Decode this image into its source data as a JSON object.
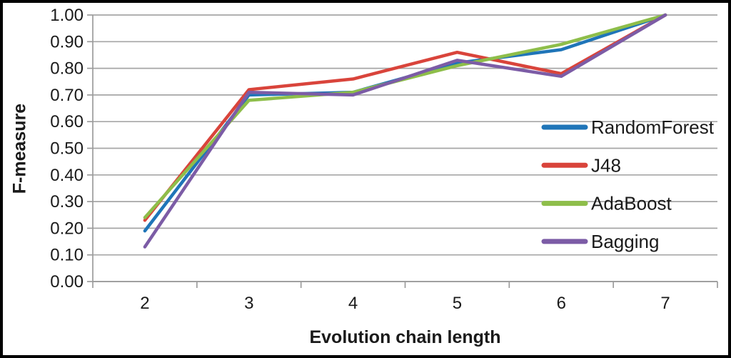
{
  "chart_data": {
    "type": "line",
    "title": "",
    "xlabel": "Evolution chain length",
    "ylabel": "F-measure",
    "categories": [
      "2",
      "3",
      "4",
      "5",
      "6",
      "7"
    ],
    "series": [
      {
        "name": "RandomForest",
        "color": "#1F75B8",
        "values": [
          0.19,
          0.7,
          0.71,
          0.82,
          0.87,
          1.0
        ]
      },
      {
        "name": "J48",
        "color": "#D9443B",
        "values": [
          0.23,
          0.72,
          0.76,
          0.86,
          0.78,
          1.0
        ]
      },
      {
        "name": "AdaBoost",
        "color": "#8EBE4A",
        "values": [
          0.24,
          0.68,
          0.71,
          0.81,
          0.89,
          1.0
        ]
      },
      {
        "name": "Bagging",
        "color": "#7C5CA6",
        "values": [
          0.13,
          0.71,
          0.7,
          0.83,
          0.77,
          1.0
        ]
      }
    ],
    "ylim": [
      0,
      1
    ],
    "ytick_labels": [
      "0.00",
      "0.10",
      "0.20",
      "0.30",
      "0.40",
      "0.50",
      "0.60",
      "0.70",
      "0.80",
      "0.90",
      "1.00"
    ],
    "xtick_labels": [
      "2",
      "3",
      "4",
      "5",
      "6",
      "7"
    ],
    "grid": "horizontal",
    "legend_position": "right-inside",
    "colors": {
      "gridline": "#A6A6A6",
      "axis": "#9C9C9C",
      "text": "#1A1A1A",
      "border": "#000000",
      "background": "#FFFFFF"
    }
  }
}
